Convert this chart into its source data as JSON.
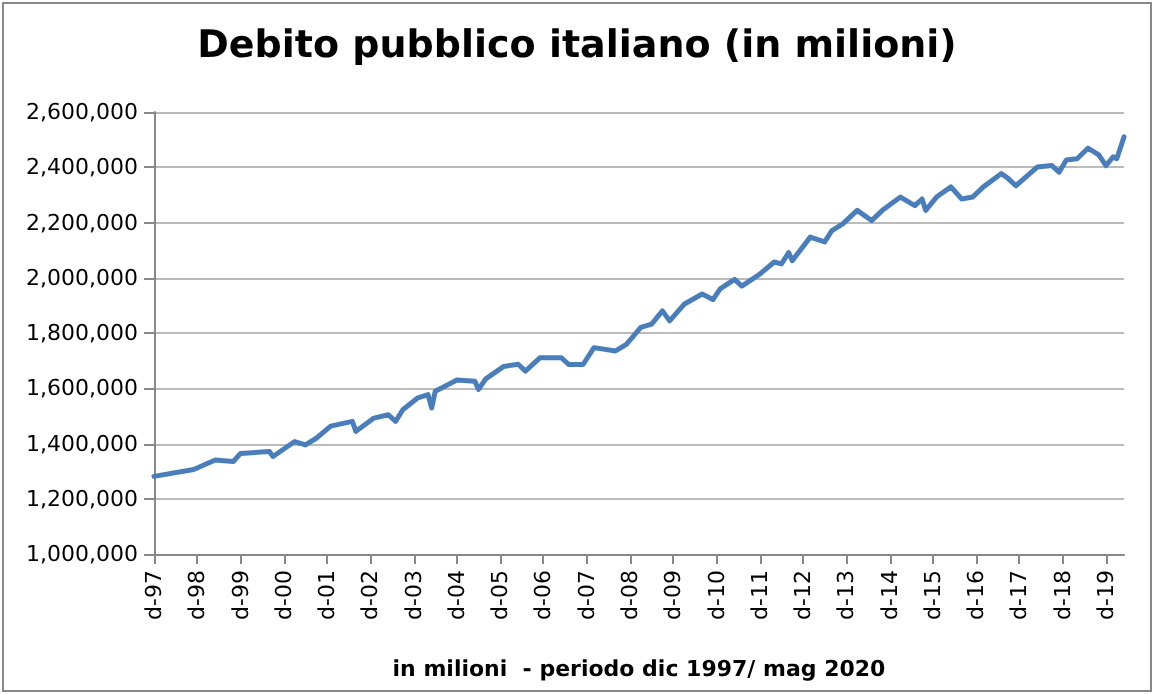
{
  "chart_data": {
    "type": "line",
    "title": "Debito pubblico italiano (in milioni)",
    "xlabel": "in milioni  - periodo dic 1997/ mag 2020",
    "x": [
      "1997-12",
      "1998-11",
      "1999-05",
      "1999-10",
      "1999-12",
      "2000-08",
      "2000-09",
      "2001-03",
      "2001-06",
      "2001-09",
      "2002-01",
      "2002-07",
      "2002-08",
      "2003-01",
      "2003-05",
      "2003-07",
      "2003-09",
      "2004-01",
      "2004-04",
      "2004-05",
      "2004-06",
      "2004-12",
      "2005-05",
      "2005-06",
      "2005-08",
      "2006-01",
      "2006-05",
      "2006-07",
      "2006-11",
      "2007-05",
      "2007-07",
      "2007-11",
      "2008-02",
      "2008-08",
      "2008-11",
      "2009-03",
      "2009-06",
      "2009-09",
      "2009-11",
      "2010-03",
      "2010-08",
      "2010-11",
      "2011-01",
      "2011-05",
      "2011-07",
      "2011-12",
      "2012-04",
      "2012-06",
      "2012-08",
      "2012-09",
      "2013-02",
      "2013-06",
      "2013-08",
      "2013-11",
      "2014-03",
      "2014-07",
      "2014-10",
      "2015-03",
      "2015-07",
      "2015-09",
      "2015-10",
      "2016-01",
      "2016-05",
      "2016-08",
      "2016-11",
      "2017-02",
      "2017-07",
      "2017-09",
      "2017-11",
      "2018-05",
      "2018-09",
      "2018-11",
      "2019-01",
      "2019-04",
      "2019-07",
      "2019-10",
      "2019-12",
      "2020-02",
      "2020-03",
      "2020-05"
    ],
    "series": [
      {
        "color": "#4a7ebb",
        "values": [
          1281000,
          1306000,
          1340000,
          1335000,
          1364000,
          1371000,
          1353000,
          1407000,
          1395000,
          1419000,
          1463000,
          1480000,
          1444000,
          1492000,
          1504000,
          1480000,
          1522000,
          1564000,
          1577000,
          1529000,
          1589000,
          1630000,
          1625000,
          1596000,
          1634000,
          1679000,
          1687000,
          1662000,
          1710000,
          1710000,
          1686000,
          1686000,
          1747000,
          1735000,
          1759000,
          1820000,
          1832000,
          1880000,
          1844000,
          1904000,
          1941000,
          1921000,
          1960000,
          1994000,
          1970000,
          2013000,
          2057000,
          2050000,
          2091000,
          2062000,
          2147000,
          2130000,
          2171000,
          2195000,
          2244000,
          2207000,
          2244000,
          2292000,
          2261000,
          2285000,
          2244000,
          2292000,
          2329000,
          2285000,
          2292000,
          2329000,
          2377000,
          2358000,
          2333000,
          2401000,
          2406000,
          2382000,
          2426000,
          2431000,
          2469000,
          2445000,
          2406000,
          2438000,
          2431000,
          2510000
        ]
      }
    ],
    "xlim": [
      "1997-12",
      "2020-05"
    ],
    "xticks": [
      {
        "value": "1997-12",
        "label": "d-97"
      },
      {
        "value": "1998-12",
        "label": "d-98"
      },
      {
        "value": "1999-12",
        "label": "d-99"
      },
      {
        "value": "2000-12",
        "label": "d-00"
      },
      {
        "value": "2001-12",
        "label": "d-01"
      },
      {
        "value": "2002-12",
        "label": "d-02"
      },
      {
        "value": "2003-12",
        "label": "d-03"
      },
      {
        "value": "2004-12",
        "label": "d-04"
      },
      {
        "value": "2005-12",
        "label": "d-05"
      },
      {
        "value": "2006-12",
        "label": "d-06"
      },
      {
        "value": "2007-12",
        "label": "d-07"
      },
      {
        "value": "2008-12",
        "label": "d-08"
      },
      {
        "value": "2009-12",
        "label": "d-09"
      },
      {
        "value": "2010-12",
        "label": "d-10"
      },
      {
        "value": "2011-12",
        "label": "d-11"
      },
      {
        "value": "2012-12",
        "label": "d-12"
      },
      {
        "value": "2013-12",
        "label": "d-13"
      },
      {
        "value": "2014-12",
        "label": "d-14"
      },
      {
        "value": "2015-12",
        "label": "d-15"
      },
      {
        "value": "2016-12",
        "label": "d-16"
      },
      {
        "value": "2017-12",
        "label": "d-17"
      },
      {
        "value": "2018-12",
        "label": "d-18"
      },
      {
        "value": "2019-12",
        "label": "d-19"
      }
    ],
    "ylim": [
      1000000,
      2600000
    ],
    "yticks": [
      {
        "value": 1000000,
        "label": "1,000,000"
      },
      {
        "value": 1200000,
        "label": "1,200,000"
      },
      {
        "value": 1400000,
        "label": "1,400,000"
      },
      {
        "value": 1600000,
        "label": "1,600,000"
      },
      {
        "value": 1800000,
        "label": "1,800,000"
      },
      {
        "value": 2000000,
        "label": "2,000,000"
      },
      {
        "value": 2200000,
        "label": "2,200,000"
      },
      {
        "value": 2400000,
        "label": "2,400,000"
      },
      {
        "value": 2600000,
        "label": "2,600,000"
      }
    ],
    "grid": "y",
    "marker": "none",
    "line_style": "solid"
  }
}
